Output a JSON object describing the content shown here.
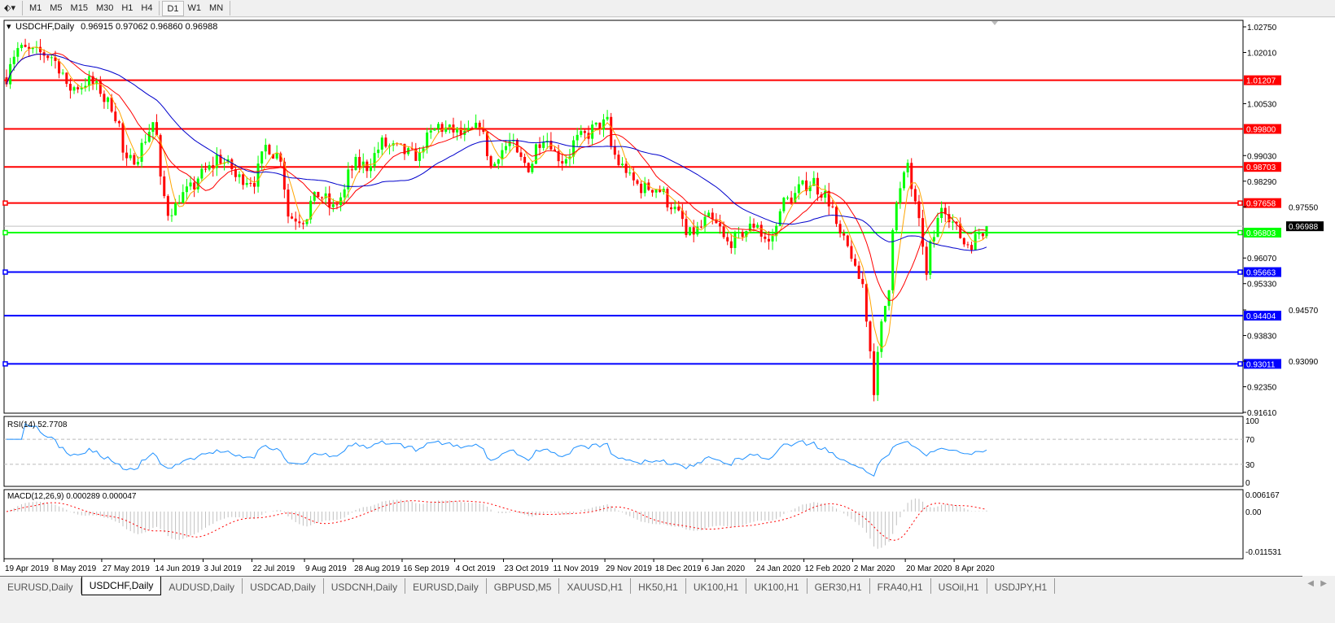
{
  "toolbar": {
    "timeframes": [
      "M1",
      "M5",
      "M15",
      "M30",
      "H1",
      "H4",
      "D1",
      "W1",
      "MN"
    ],
    "active": "D1"
  },
  "chart": {
    "symbol_label": "USDCHF,Daily",
    "ohlc": "0.96915 0.97062 0.96860 0.96988",
    "price_axis": [
      "1.02750",
      "1.02010",
      "1.00530",
      "0.99030",
      "0.98290",
      "0.97550",
      "0.96070",
      "0.95330",
      "0.94570",
      "0.93830",
      "0.93090",
      "0.92350",
      "0.91610"
    ],
    "current_price": "0.96988",
    "levels": [
      {
        "price": "1.01207",
        "color": "#ff0000"
      },
      {
        "price": "0.99800",
        "color": "#ff0000"
      },
      {
        "price": "0.98703",
        "color": "#ff0000"
      },
      {
        "price": "0.97658",
        "color": "#ff0000"
      },
      {
        "price": "0.96803",
        "color": "#00ff00"
      },
      {
        "price": "0.95663",
        "color": "#0000ff"
      },
      {
        "price": "0.94404",
        "color": "#0000ff"
      },
      {
        "price": "0.93011",
        "color": "#0000ff"
      }
    ],
    "colors": {
      "bull": "#00ff00",
      "bear": "#ff0000",
      "ma_fast": "#ffa500",
      "ma_mid": "#ff0000",
      "ma_slow": "#0000cc",
      "rsi": "#1e90ff",
      "macd_hist": "#c0c0c0",
      "macd_signal": "#ff0000"
    },
    "date_labels": [
      "19 Apr 2019",
      "8 May 2019",
      "27 May 2019",
      "14 Jun 2019",
      "3 Jul 2019",
      "22 Jul 2019",
      "9 Aug 2019",
      "28 Aug 2019",
      "16 Sep 2019",
      "4 Oct 2019",
      "23 Oct 2019",
      "11 Nov 2019",
      "29 Nov 2019",
      "18 Dec 2019",
      "6 Jan 2020",
      "24 Jan 2020",
      "12 Feb 2020",
      "2 Mar 2020",
      "20 Mar 2020",
      "8 Apr 2020"
    ],
    "rsi": {
      "label": "RSI(14) 52.7708",
      "axis": [
        "100",
        "70",
        "30",
        "0"
      ]
    },
    "macd": {
      "label": "MACD(12,26,9) 0.000289 0.000047",
      "axis": [
        "0.006167",
        "0.00",
        "-0.011531"
      ]
    }
  },
  "chart_data": {
    "type": "candlestick",
    "close_path": [
      [
        "2019-04-19",
        1.0129
      ],
      [
        "2019-04-24",
        1.0212
      ],
      [
        "2019-05-07",
        1.019
      ],
      [
        "2019-05-13",
        1.0094
      ],
      [
        "2019-05-21",
        1.0118
      ],
      [
        "2019-05-29",
        1.0047
      ],
      [
        "2019-06-04",
        0.988
      ],
      [
        "2019-06-10",
        0.993
      ],
      [
        "2019-06-13",
        1.0
      ],
      [
        "2019-06-19",
        0.974
      ],
      [
        "2019-06-25",
        0.979
      ],
      [
        "2019-07-08",
        0.99
      ],
      [
        "2019-07-15",
        0.984
      ],
      [
        "2019-07-22",
        0.983
      ],
      [
        "2019-07-25",
        0.993
      ],
      [
        "2019-07-31",
        0.99
      ],
      [
        "2019-08-02",
        0.973
      ],
      [
        "2019-08-08",
        0.972
      ],
      [
        "2019-08-14",
        0.979
      ],
      [
        "2019-08-20",
        0.975
      ],
      [
        "2019-08-28",
        0.988
      ],
      [
        "2019-09-02",
        0.987
      ],
      [
        "2019-09-06",
        0.994
      ],
      [
        "2019-09-20",
        0.99
      ],
      [
        "2019-09-27",
        0.999
      ],
      [
        "2019-10-08",
        0.996
      ],
      [
        "2019-10-14",
        1.0
      ],
      [
        "2019-10-17",
        0.987
      ],
      [
        "2019-10-24",
        0.994
      ],
      [
        "2019-10-31",
        0.987
      ],
      [
        "2019-11-06",
        0.996
      ],
      [
        "2019-11-13",
        0.989
      ],
      [
        "2019-11-19",
        0.995
      ],
      [
        "2019-11-29",
        1.0
      ],
      [
        "2019-12-04",
        0.988
      ],
      [
        "2019-12-12",
        0.981
      ],
      [
        "2019-12-18",
        0.981
      ],
      [
        "2019-12-24",
        0.976
      ],
      [
        "2019-12-30",
        0.967
      ],
      [
        "2020-01-07",
        0.972
      ],
      [
        "2020-01-14",
        0.965
      ],
      [
        "2020-01-20",
        0.968
      ],
      [
        "2020-01-24",
        0.971
      ],
      [
        "2020-01-29",
        0.965
      ],
      [
        "2020-02-03",
        0.976
      ],
      [
        "2020-02-07",
        0.979
      ],
      [
        "2020-02-14",
        0.983
      ],
      [
        "2020-02-19",
        0.979
      ],
      [
        "2020-02-25",
        0.967
      ],
      [
        "2020-03-04",
        0.953
      ],
      [
        "2020-03-06",
        0.934
      ],
      [
        "2020-03-09",
        0.923
      ],
      [
        "2020-03-11",
        0.941
      ],
      [
        "2020-03-13",
        0.953
      ],
      [
        "2020-03-17",
        0.976
      ],
      [
        "2020-03-20",
        0.988
      ],
      [
        "2020-03-23",
        0.981
      ],
      [
        "2020-03-26",
        0.965
      ],
      [
        "2020-03-27",
        0.955
      ],
      [
        "2020-03-31",
        0.967
      ],
      [
        "2020-04-02",
        0.976
      ],
      [
        "2020-04-06",
        0.973
      ],
      [
        "2020-04-10",
        0.965
      ],
      [
        "2020-04-14",
        0.965
      ],
      [
        "2020-04-16",
        0.968
      ],
      [
        "2020-04-20",
        0.96988
      ]
    ],
    "ylim": [
      0.9161,
      1.0275
    ]
  },
  "tabs": [
    "EURUSD,Daily",
    "USDCHF,Daily",
    "AUDUSD,Daily",
    "USDCAD,Daily",
    "USDCNH,Daily",
    "EURUSD,Daily",
    "GBPUSD,M5",
    "XAUUSD,H1",
    "HK50,H1",
    "UK100,H1",
    "UK100,H1",
    "GER30,H1",
    "FRA40,H1",
    "USOil,H1",
    "USDJPY,H1"
  ],
  "active_tab": "USDCHF,Daily"
}
